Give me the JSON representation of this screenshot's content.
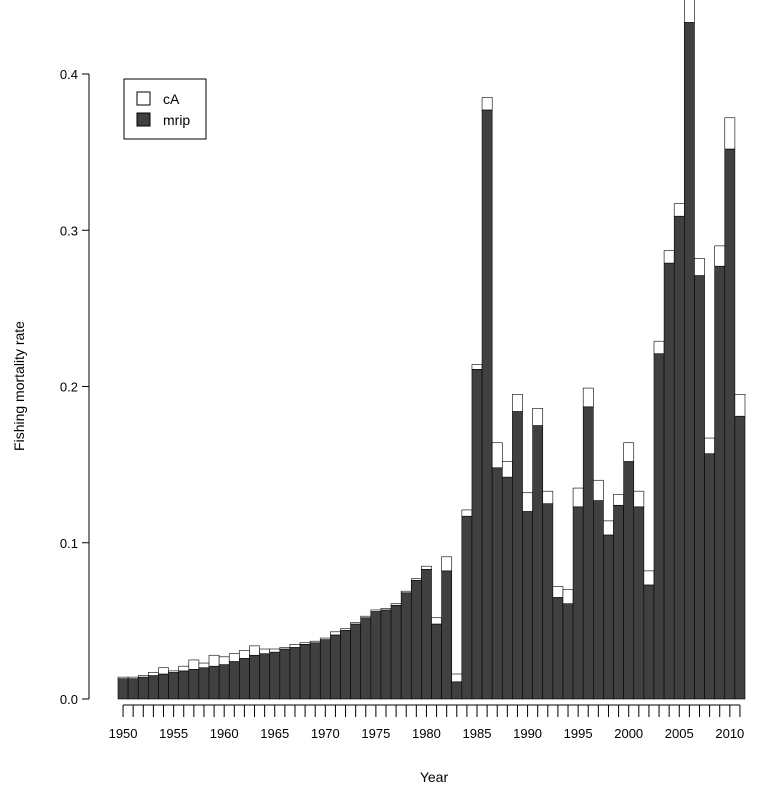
{
  "chart_data": {
    "type": "bar",
    "stacked": true,
    "xlabel": "Year",
    "ylabel": "Fishing mortality rate",
    "ylim": [
      0,
      0.45
    ],
    "y_ticks": [
      0.0,
      0.1,
      0.2,
      0.3,
      0.4
    ],
    "y_tick_labels": [
      "0.0",
      "0.1",
      "0.2",
      "0.3",
      "0.4"
    ],
    "x_tick_labels": [
      "1950",
      "1955",
      "1960",
      "1965",
      "1970",
      "1975",
      "1980",
      "1985",
      "1990",
      "1995",
      "2000",
      "2005",
      "2010"
    ],
    "categories": [
      1950,
      1951,
      1952,
      1953,
      1954,
      1955,
      1956,
      1957,
      1958,
      1959,
      1960,
      1961,
      1962,
      1963,
      1964,
      1965,
      1966,
      1967,
      1968,
      1969,
      1970,
      1971,
      1972,
      1973,
      1974,
      1975,
      1976,
      1977,
      1978,
      1979,
      1980,
      1981,
      1982,
      1983,
      1984,
      1985,
      1986,
      1987,
      1988,
      1989,
      1990,
      1991,
      1992,
      1993,
      1994,
      1995,
      1996,
      1997,
      1998,
      1999,
      2000,
      2001,
      2002,
      2003,
      2004,
      2005,
      2006,
      2007,
      2008,
      2009,
      2010,
      2011
    ],
    "legend": {
      "position": "top-left"
    },
    "series": [
      {
        "name": "mrip",
        "color": "#404040",
        "values": [
          0.013,
          0.013,
          0.014,
          0.015,
          0.016,
          0.017,
          0.018,
          0.019,
          0.02,
          0.021,
          0.022,
          0.024,
          0.026,
          0.028,
          0.029,
          0.03,
          0.032,
          0.033,
          0.035,
          0.036,
          0.038,
          0.041,
          0.044,
          0.048,
          0.052,
          0.056,
          0.057,
          0.06,
          0.068,
          0.076,
          0.083,
          0.048,
          0.082,
          0.011,
          0.117,
          0.211,
          0.377,
          0.148,
          0.142,
          0.184,
          0.12,
          0.175,
          0.125,
          0.065,
          0.061,
          0.123,
          0.187,
          0.127,
          0.105,
          0.124,
          0.152,
          0.123,
          0.073,
          0.221,
          0.279,
          0.309,
          0.433,
          0.271,
          0.157,
          0.277,
          0.352,
          0.181
        ]
      },
      {
        "name": "cA",
        "color": "#ffffff",
        "values": [
          0.001,
          0.001,
          0.001,
          0.002,
          0.004,
          0.001,
          0.003,
          0.006,
          0.003,
          0.007,
          0.005,
          0.005,
          0.005,
          0.006,
          0.003,
          0.002,
          0.001,
          0.002,
          0.001,
          0.001,
          0.001,
          0.002,
          0.001,
          0.001,
          0.001,
          0.001,
          0.001,
          0.001,
          0.001,
          0.001,
          0.002,
          0.004,
          0.009,
          0.005,
          0.004,
          0.003,
          0.008,
          0.016,
          0.01,
          0.011,
          0.012,
          0.011,
          0.008,
          0.007,
          0.009,
          0.012,
          0.012,
          0.013,
          0.009,
          0.007,
          0.012,
          0.01,
          0.009,
          0.008,
          0.008,
          0.008,
          0.015,
          0.011,
          0.01,
          0.013,
          0.02,
          0.014
        ]
      }
    ]
  }
}
